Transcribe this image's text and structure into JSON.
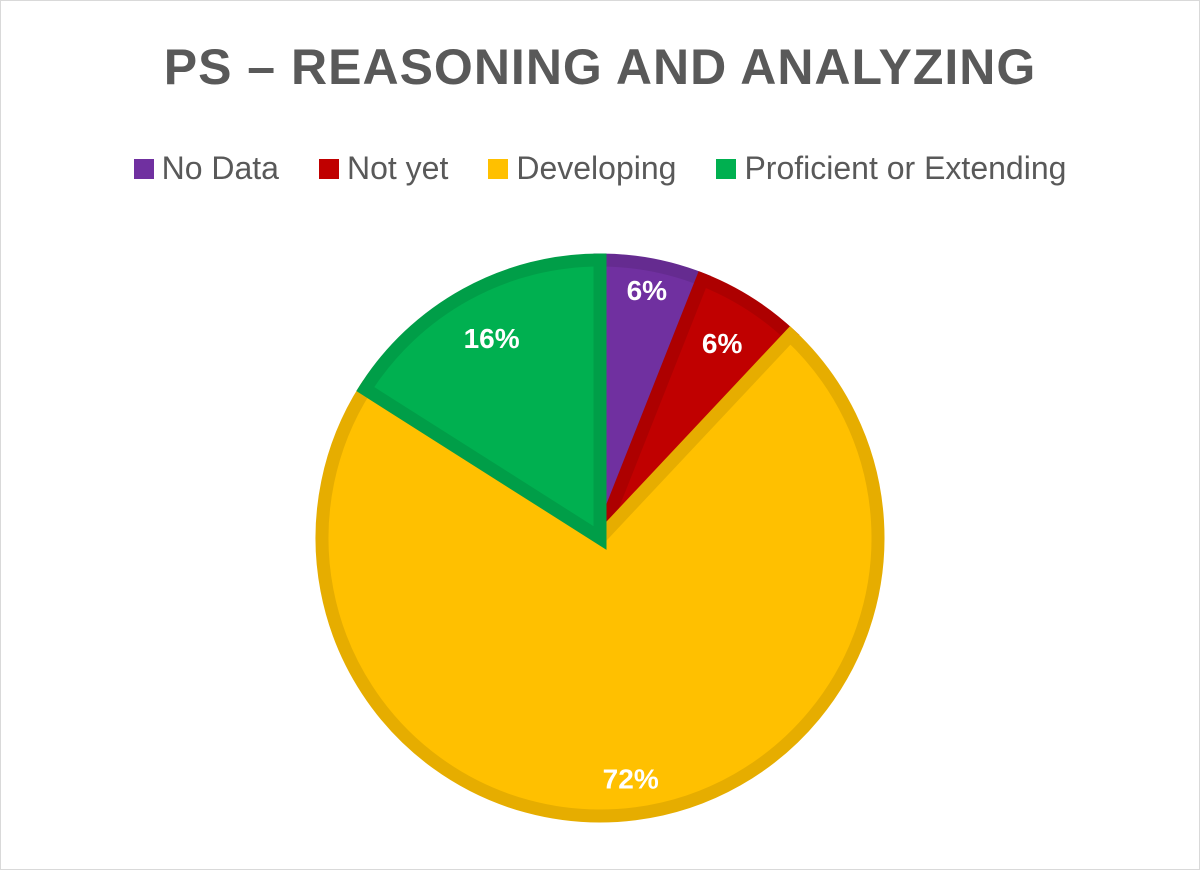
{
  "chart_data": {
    "type": "pie",
    "title": "PS – REASONING AND ANALYZING",
    "legend_position": "top",
    "slices": [
      {
        "name": "No Data",
        "value": 6,
        "label": "6%",
        "color": "#7030a0"
      },
      {
        "name": "Not yet",
        "value": 6,
        "label": "6%",
        "color": "#c00000"
      },
      {
        "name": "Developing",
        "value": 72,
        "label": "72%",
        "color": "#ffc000"
      },
      {
        "name": "Proficient or Extending",
        "value": 16,
        "label": "16%",
        "color": "#00b050"
      }
    ]
  }
}
